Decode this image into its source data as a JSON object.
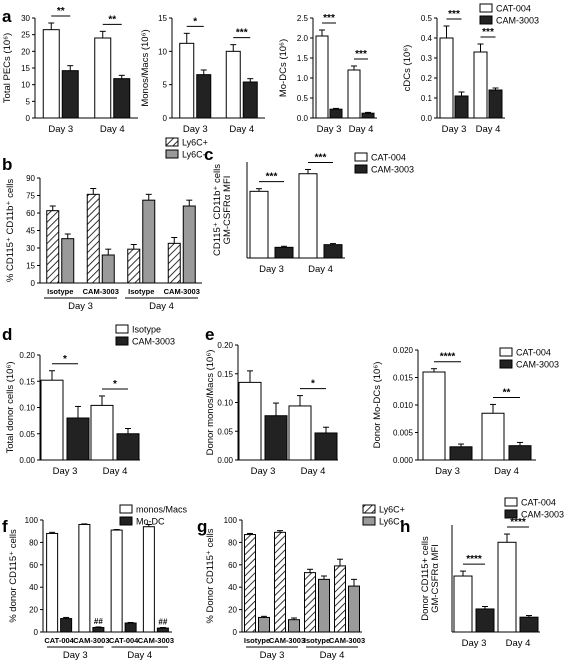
{
  "colors": {
    "white": "#ffffff",
    "black": "#222222",
    "gray": "#9a9a9a",
    "axis": "#000000"
  },
  "significance": [
    "*",
    "**",
    "***",
    "****",
    "##"
  ],
  "chart_data": [
    {
      "panel_label": "a",
      "type": "bar",
      "ylabel": "Total PECs (10⁶)",
      "ylim": [
        0,
        30
      ],
      "yticks": [
        0,
        5,
        10,
        15,
        20,
        25,
        30
      ],
      "categories": [
        "Day 3",
        "Day 4"
      ],
      "series": [
        {
          "name": "CAT-004",
          "fill": "white",
          "values": [
            26.5,
            24.0
          ],
          "err": [
            2.0,
            2.0
          ]
        },
        {
          "name": "CAM-3003",
          "fill": "black",
          "values": [
            14.2,
            11.8
          ],
          "err": [
            1.5,
            1.0
          ]
        }
      ],
      "sig": [
        {
          "cat": 0,
          "text": "**"
        },
        {
          "cat": 1,
          "text": "**"
        }
      ]
    },
    {
      "panel_label": "",
      "type": "bar",
      "ylabel": "Monos/Macs (10⁶)",
      "ylim": [
        0,
        15
      ],
      "yticks": [
        0,
        5,
        10,
        15
      ],
      "categories": [
        "Day 3",
        "Day 4"
      ],
      "series": [
        {
          "name": "CAT-004",
          "fill": "white",
          "values": [
            11.2,
            10.0
          ],
          "err": [
            1.5,
            1.0
          ]
        },
        {
          "name": "CAM-3003",
          "fill": "black",
          "values": [
            6.5,
            5.4
          ],
          "err": [
            0.7,
            0.5
          ]
        }
      ],
      "sig": [
        {
          "cat": 0,
          "text": "*"
        },
        {
          "cat": 1,
          "text": "***"
        }
      ]
    },
    {
      "panel_label": "",
      "type": "bar",
      "ylabel": "Mo-DCs (10⁶)",
      "ylim": [
        0,
        2.5
      ],
      "yticks": [
        0.0,
        0.5,
        1.0,
        1.5,
        2.0,
        2.5
      ],
      "categories": [
        "Day 3",
        "Day 4"
      ],
      "series": [
        {
          "name": "CAT-004",
          "fill": "white",
          "values": [
            2.05,
            1.2
          ],
          "err": [
            0.15,
            0.1
          ]
        },
        {
          "name": "CAM-3003",
          "fill": "black",
          "values": [
            0.22,
            0.12
          ],
          "err": [
            0.02,
            0.02
          ]
        }
      ],
      "sig": [
        {
          "cat": 0,
          "text": "***"
        },
        {
          "cat": 1,
          "text": "***"
        }
      ]
    },
    {
      "panel_label": "",
      "type": "bar",
      "ylabel": "cDCs (10⁶)",
      "ylim": [
        0,
        0.5
      ],
      "yticks": [
        0.0,
        0.1,
        0.2,
        0.3,
        0.4,
        0.5
      ],
      "categories": [
        "Day 3",
        "Day 4"
      ],
      "series": [
        {
          "name": "CAT-004",
          "fill": "white",
          "values": [
            0.4,
            0.33
          ],
          "err": [
            0.06,
            0.04
          ]
        },
        {
          "name": "CAM-3003",
          "fill": "black",
          "values": [
            0.11,
            0.14
          ],
          "err": [
            0.02,
            0.01
          ]
        }
      ],
      "sig": [
        {
          "cat": 0,
          "text": "***"
        },
        {
          "cat": 1,
          "text": "***"
        }
      ],
      "legend": [
        "CAT-004",
        "CAM-3003"
      ]
    },
    {
      "panel_label": "b",
      "type": "bar",
      "ylabel": "% CD115⁺ CD11b⁺ cells",
      "ylim": [
        0,
        90
      ],
      "yticks": [
        0,
        15,
        30,
        45,
        60,
        75,
        90
      ],
      "categories": [
        "Isotype",
        "CAM-3003",
        "Isotype",
        "CAM-3003"
      ],
      "groups": [
        "Day 3",
        "Day 4"
      ],
      "series": [
        {
          "name": "Ly6C+",
          "fill": "hatch",
          "values": [
            62,
            76,
            29,
            34
          ],
          "err": [
            4,
            5,
            4,
            5
          ]
        },
        {
          "name": "Ly6C-",
          "fill": "gray",
          "values": [
            38,
            24,
            71,
            66
          ],
          "err": [
            4,
            5,
            5,
            5
          ]
        }
      ],
      "legend": [
        "Ly6C+",
        "Ly6C-"
      ]
    },
    {
      "panel_label": "c",
      "type": "bar",
      "ylabel": "CD115⁺ CD11b⁺ cells\nGM-CSFRα MFI",
      "ylim": [
        0,
        18
      ],
      "yticks": [],
      "categories": [
        "Day 3",
        "Day 4"
      ],
      "series": [
        {
          "name": "CAT-004",
          "fill": "white",
          "values": [
            12.5,
            15.8
          ],
          "err": [
            0.5,
            0.8
          ]
        },
        {
          "name": "CAM-3003",
          "fill": "black",
          "values": [
            2.0,
            2.5
          ],
          "err": [
            0.2,
            0.2
          ]
        }
      ],
      "sig": [
        {
          "cat": 0,
          "text": "***"
        },
        {
          "cat": 1,
          "text": "***"
        }
      ],
      "legend": [
        "CAT-004",
        "CAM-3003"
      ]
    },
    {
      "panel_label": "d",
      "type": "bar",
      "ylabel": "Total donor cells (10⁶)",
      "ylim": [
        0,
        0.2
      ],
      "yticks": [
        0.0,
        0.05,
        0.1,
        0.15,
        0.2
      ],
      "categories": [
        "Day 3",
        "Day 4"
      ],
      "series": [
        {
          "name": "Isotype",
          "fill": "white",
          "values": [
            0.152,
            0.104
          ],
          "err": [
            0.018,
            0.018
          ]
        },
        {
          "name": "CAM-3003",
          "fill": "black",
          "values": [
            0.08,
            0.05
          ],
          "err": [
            0.022,
            0.01
          ]
        }
      ],
      "sig": [
        {
          "cat": 0,
          "text": "*"
        },
        {
          "cat": 1,
          "text": "*"
        }
      ],
      "legend": [
        "Isotype",
        "CAM-3003"
      ]
    },
    {
      "panel_label": "e",
      "type": "bar",
      "ylabel": "Donor monos/Macs (10⁶)",
      "ylim": [
        0,
        0.2
      ],
      "yticks": [
        0.0,
        0.05,
        0.1,
        0.15,
        0.2
      ],
      "categories": [
        "Day 3",
        "Day 4"
      ],
      "series": [
        {
          "name": "CAT-004",
          "fill": "white",
          "values": [
            0.135,
            0.094
          ],
          "err": [
            0.02,
            0.018
          ]
        },
        {
          "name": "CAM-3003",
          "fill": "black",
          "values": [
            0.077,
            0.047
          ],
          "err": [
            0.022,
            0.01
          ]
        }
      ],
      "sig": [
        {
          "cat": 1,
          "text": "*"
        }
      ]
    },
    {
      "panel_label": "",
      "type": "bar",
      "ylabel": "Donor Mo-DCs (10⁶)",
      "ylim": [
        0,
        0.02
      ],
      "yticks": [
        0.0,
        0.005,
        0.01,
        0.015,
        0.02
      ],
      "categories": [
        "Day 3",
        "Day 4"
      ],
      "series": [
        {
          "name": "CAT-004",
          "fill": "white",
          "values": [
            0.016,
            0.0085
          ],
          "err": [
            0.0006,
            0.0016
          ]
        },
        {
          "name": "CAM-3003",
          "fill": "black",
          "values": [
            0.0024,
            0.0026
          ],
          "err": [
            0.0005,
            0.0006
          ]
        }
      ],
      "sig": [
        {
          "cat": 0,
          "text": "****"
        },
        {
          "cat": 1,
          "text": "**"
        }
      ],
      "legend": [
        "CAT-004",
        "CAM-3003"
      ]
    },
    {
      "panel_label": "f",
      "type": "bar",
      "ylabel": "% donor CD115⁺ cells",
      "ylim": [
        0,
        100
      ],
      "yticks": [
        0,
        20,
        40,
        60,
        80,
        100
      ],
      "categories": [
        "CAT-004",
        "CAM-3003",
        "CAT-004",
        "CAM-3003"
      ],
      "groups": [
        "Day 3",
        "Day 4"
      ],
      "series": [
        {
          "name": "monos/Macs",
          "fill": "white",
          "values": [
            88,
            96,
            91,
            94
          ],
          "err": [
            1,
            0.5,
            0.5,
            2
          ]
        },
        {
          "name": "Mo-DC",
          "fill": "black",
          "values": [
            12,
            4,
            8,
            3.5
          ],
          "err": [
            1,
            0.5,
            0.5,
            0.5
          ]
        }
      ],
      "marks": [
        {
          "cat": 1,
          "series": 1,
          "text": "##"
        },
        {
          "cat": 3,
          "series": 1,
          "text": "##"
        }
      ],
      "legend": [
        "monos/Macs",
        "Mo-DC"
      ]
    },
    {
      "panel_label": "g",
      "type": "bar",
      "ylabel": "% Donor CD115⁺ cells",
      "ylim": [
        0,
        100
      ],
      "yticks": [
        0,
        20,
        40,
        60,
        80,
        100
      ],
      "categories": [
        "Isotype",
        "CAM-3003",
        "Isotype",
        "CAM-3003"
      ],
      "groups": [
        "Day 3",
        "Day 4"
      ],
      "series": [
        {
          "name": "Ly6C+",
          "fill": "hatch",
          "values": [
            87,
            89,
            53,
            59
          ],
          "err": [
            1,
            1.5,
            3,
            6
          ]
        },
        {
          "name": "Ly6C-",
          "fill": "gray",
          "values": [
            13,
            11,
            47,
            41
          ],
          "err": [
            1,
            1.5,
            3,
            6
          ]
        }
      ],
      "legend": [
        "Ly6C+",
        "Ly6C-"
      ]
    },
    {
      "panel_label": "h",
      "type": "bar",
      "ylabel": "Donor CD115+ cells\nGM-CSFRα MFI",
      "ylim": [
        0,
        13
      ],
      "yticks": [],
      "categories": [
        "Day 3",
        "Day 4"
      ],
      "series": [
        {
          "name": "CAT-004",
          "fill": "white",
          "values": [
            6.8,
            10.9
          ],
          "err": [
            0.6,
            1.0
          ]
        },
        {
          "name": "CAM-3003",
          "fill": "black",
          "values": [
            2.8,
            1.8
          ],
          "err": [
            0.3,
            0.2
          ]
        }
      ],
      "sig": [
        {
          "cat": 0,
          "text": "****"
        },
        {
          "cat": 1,
          "text": "****"
        }
      ],
      "legend": [
        "CAT-004",
        "CAM-3003"
      ]
    }
  ]
}
